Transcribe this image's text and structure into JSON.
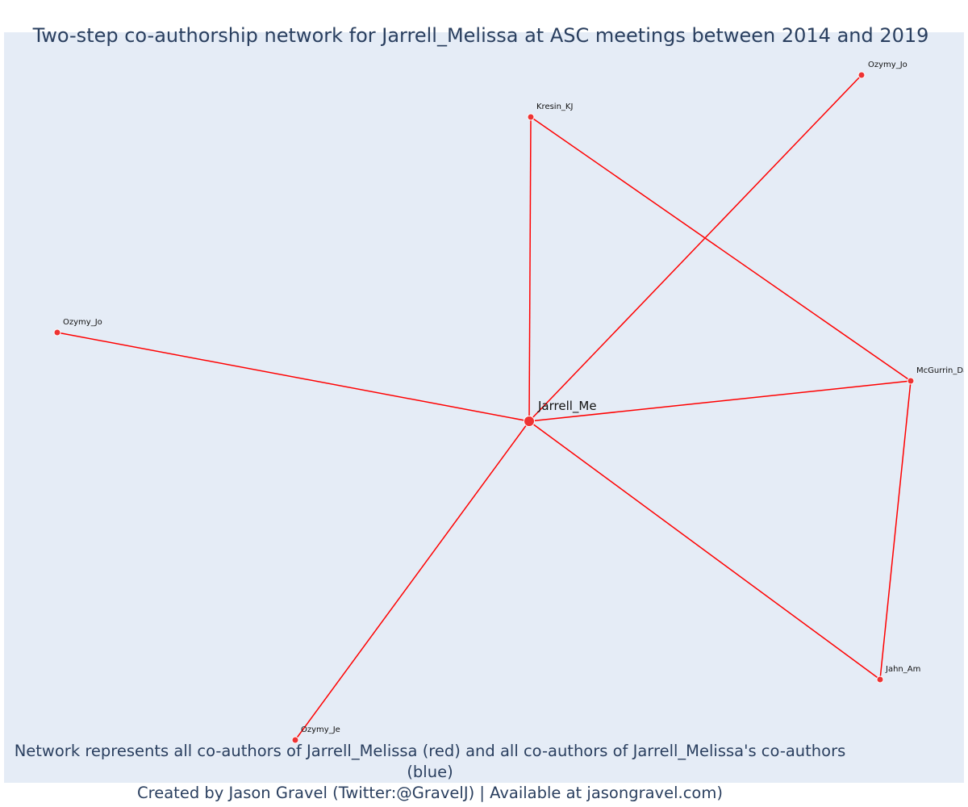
{
  "title": "Two-step co-authorship network for Jarrell_Melissa at ASC meetings between 2014 and 2019",
  "caption": {
    "line1": "Network represents all co-authors of Jarrell_Melissa (red) and all co-authors of Jarrell_Melissa's co-authors (blue)",
    "line2": "Created by Jason Gravel (Twitter:@GravelJ) | Available at jasongravel.com)"
  },
  "colors": {
    "background": "#e5ecf6",
    "edge": "#ff0000",
    "node": "#ee3333",
    "node_outline": "#ffffff",
    "text": "#2a3f5f"
  },
  "nodes": [
    {
      "id": "jarrell",
      "label": "Jarrell_Me",
      "center": true
    },
    {
      "id": "kresin",
      "label": "Kresin_KJ"
    },
    {
      "id": "ozymy_jo_top",
      "label": "Ozymy_Jo"
    },
    {
      "id": "ozymy_jo_left",
      "label": "Ozymy_Jo"
    },
    {
      "id": "mcgurrin",
      "label": "McGurrin_Da"
    },
    {
      "id": "jahn",
      "label": "Jahn_Am"
    },
    {
      "id": "ozymy_je",
      "label": "Ozymy_Je"
    }
  ],
  "edges": [
    [
      "jarrell",
      "kresin"
    ],
    [
      "jarrell",
      "ozymy_jo_top"
    ],
    [
      "jarrell",
      "ozymy_jo_left"
    ],
    [
      "jarrell",
      "mcgurrin"
    ],
    [
      "jarrell",
      "jahn"
    ],
    [
      "jarrell",
      "ozymy_je"
    ],
    [
      "kresin",
      "mcgurrin"
    ],
    [
      "mcgurrin",
      "jahn"
    ]
  ]
}
